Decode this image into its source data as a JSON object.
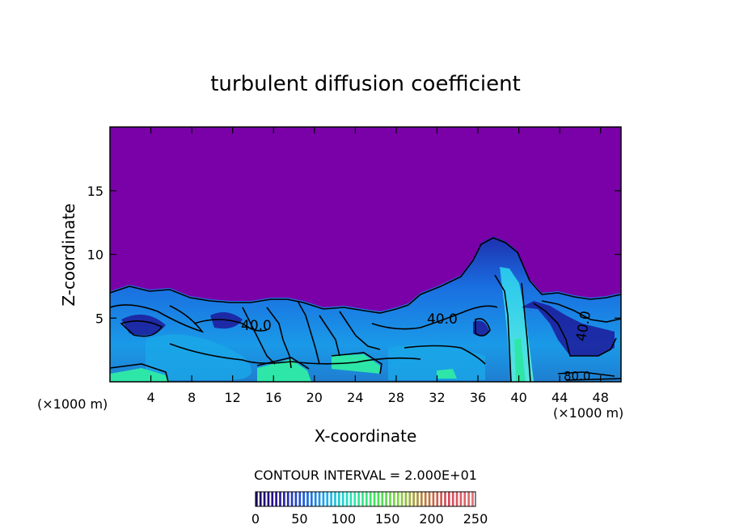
{
  "chart_data": {
    "type": "heatmap",
    "title": "turbulent diffusion coefficient",
    "xlabel": "X-coordinate",
    "ylabel": "Z-coordinate",
    "x_unit_left": "(×1000 m)",
    "x_unit_right": "(×1000 m)",
    "xlim": [
      0,
      50
    ],
    "ylim": [
      0,
      20
    ],
    "x_ticks": [
      4,
      8,
      12,
      16,
      20,
      24,
      28,
      32,
      36,
      40,
      44,
      48
    ],
    "y_ticks": [
      5,
      10,
      15
    ],
    "contour_labels": [
      "40.0",
      "40.0",
      "40.0",
      "80.0"
    ],
    "contour_interval_text": "CONTOUR INTERVAL = 2.000E+01",
    "colorbar": {
      "ticks": [
        0,
        50,
        100,
        150,
        200,
        250
      ],
      "range": [
        0,
        250
      ],
      "colors": [
        "#1a0060",
        "#2a1aa0",
        "#1d5fe0",
        "#19b5ee",
        "#2ee6b4",
        "#47e25a",
        "#88d040",
        "#c07a3a",
        "#d54a5e",
        "#e07070"
      ]
    },
    "background_value_color": "#7a00a8",
    "turbulent_layer_top_z": [
      6.5,
      7.5,
      6.5,
      6,
      6.5,
      7,
      6.5,
      6,
      5.5,
      5.5,
      7,
      8.5,
      10.5,
      11,
      9,
      7,
      6.5
    ]
  }
}
